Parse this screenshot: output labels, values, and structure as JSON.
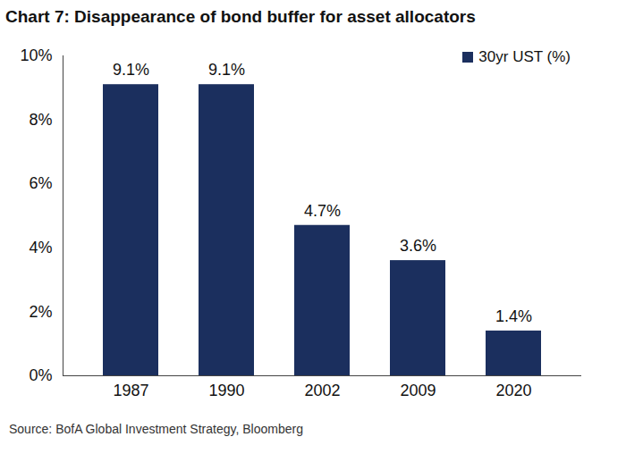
{
  "chart_data": {
    "type": "bar",
    "title": "Chart 7: Disappearance of bond buffer for asset allocators",
    "caption": "Source: BofA Global Investment Strategy, Bloomberg",
    "categories": [
      "1987",
      "1990",
      "2002",
      "2009",
      "2020"
    ],
    "series": [
      {
        "name": "30yr UST (%)",
        "color": "#1b2f5e",
        "values": [
          9.1,
          9.1,
          4.7,
          3.6,
          1.4
        ],
        "value_labels": [
          "9.1%",
          "9.1%",
          "4.7%",
          "3.6%",
          "1.4%"
        ]
      }
    ],
    "ylim": [
      0,
      10
    ],
    "yticks": [
      {
        "value": 0,
        "label": "0%"
      },
      {
        "value": 2,
        "label": "2%"
      },
      {
        "value": 4,
        "label": "4%"
      },
      {
        "value": 6,
        "label": "6%"
      },
      {
        "value": 8,
        "label": "8%"
      },
      {
        "value": 10,
        "label": "10%"
      }
    ],
    "grid": false,
    "legend": "top-right",
    "data_labels": true
  }
}
